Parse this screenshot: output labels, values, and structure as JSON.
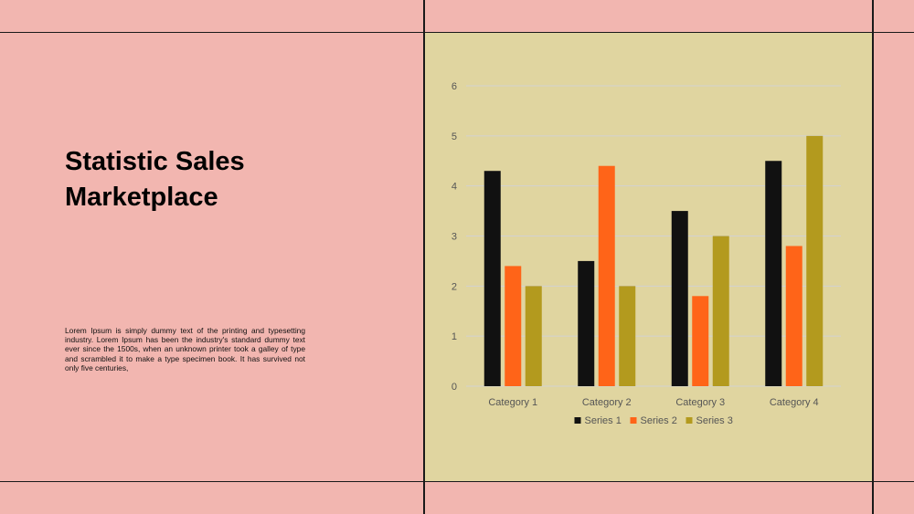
{
  "slide": {
    "title": "Statistic Sales Marketplace",
    "body": "Lorem Ipsum is simply dummy text of the printing and typesetting industry. Lorem Ipsum has been the industry's standard dummy text ever since the 1500s, when an unknown printer took a galley of type and scrambled it to make a type specimen book. It has survived not only five centuries,"
  },
  "colors": {
    "background": "#f2b6b0",
    "chart_background": "#e0d5a0",
    "series": [
      "#111111",
      "#ff6418",
      "#b39a1e"
    ]
  },
  "chart_data": {
    "type": "bar",
    "title": "",
    "xlabel": "",
    "ylabel": "",
    "categories": [
      "Category 1",
      "Category 2",
      "Category 3",
      "Category 4"
    ],
    "series": [
      {
        "name": "Series 1",
        "values": [
          4.3,
          2.5,
          3.5,
          4.5
        ]
      },
      {
        "name": "Series 2",
        "values": [
          2.4,
          4.4,
          1.8,
          2.8
        ]
      },
      {
        "name": "Series 3",
        "values": [
          2,
          2,
          3,
          5
        ]
      }
    ],
    "ylim": [
      0,
      6
    ],
    "yticks": [
      0,
      1,
      2,
      3,
      4,
      5,
      6
    ],
    "grid": true,
    "legend": "bottom"
  }
}
